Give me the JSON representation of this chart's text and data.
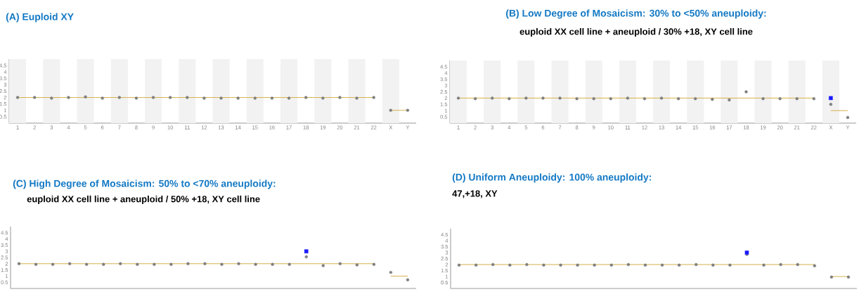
{
  "chart_data": [
    {
      "type": "scatter",
      "title": "(A) Euploid XY",
      "ylim": [
        0,
        5
      ],
      "yticks": [
        0.5,
        1,
        1.5,
        2,
        2.5,
        3,
        3.5,
        4,
        4.5
      ],
      "categories": [
        "1",
        "2",
        "3",
        "4",
        "5",
        "6",
        "7",
        "8",
        "9",
        "10",
        "11",
        "12",
        "13",
        "14",
        "15",
        "16",
        "17",
        "18",
        "19",
        "20",
        "21",
        "22",
        "X",
        "Y"
      ],
      "bands": [
        {
          "axis": "x",
          "from": "1",
          "to": "1",
          "color": "#f2f2f2"
        },
        {
          "axis": "x",
          "from": "3",
          "to": "3",
          "color": "#f2f2f2"
        },
        {
          "axis": "x",
          "from": "5",
          "to": "5",
          "color": "#f2f2f2"
        },
        {
          "axis": "x",
          "from": "7",
          "to": "7",
          "color": "#f2f2f2"
        },
        {
          "axis": "x",
          "from": "9",
          "to": "9",
          "color": "#f2f2f2"
        },
        {
          "axis": "x",
          "from": "11",
          "to": "11",
          "color": "#f2f2f2"
        },
        {
          "axis": "x",
          "from": "13",
          "to": "13",
          "color": "#f2f2f2"
        },
        {
          "axis": "x",
          "from": "15",
          "to": "15",
          "color": "#f2f2f2"
        },
        {
          "axis": "x",
          "from": "17",
          "to": "17",
          "color": "#f2f2f2"
        },
        {
          "axis": "x",
          "from": "19",
          "to": "19",
          "color": "#f2f2f2"
        },
        {
          "axis": "x",
          "from": "21",
          "to": "21",
          "color": "#f2f2f2"
        },
        {
          "axis": "x",
          "from": "X",
          "to": "X",
          "color": "#f2f2f2"
        }
      ],
      "series": [
        {
          "marker": "circle",
          "color": "#7f7f7f",
          "values": [
            2.0,
            2.0,
            1.95,
            2.0,
            2.05,
            1.95,
            2.0,
            1.95,
            2.0,
            2.0,
            2.0,
            1.95,
            1.95,
            1.95,
            1.95,
            1.95,
            1.95,
            2.0,
            1.95,
            2.0,
            1.95,
            2.0,
            1.0,
            1.0
          ]
        },
        {
          "type": "line",
          "color": "#d4b04a",
          "values": [
            2,
            2,
            2,
            2,
            2,
            2,
            2,
            2,
            2,
            2,
            2,
            2,
            2,
            2,
            2,
            2,
            2,
            2,
            2,
            2,
            2,
            2,
            null,
            null
          ]
        },
        {
          "type": "line",
          "color": "#d4b04a",
          "values": [
            null,
            null,
            null,
            null,
            null,
            null,
            null,
            null,
            null,
            null,
            null,
            null,
            null,
            null,
            null,
            null,
            null,
            null,
            null,
            null,
            null,
            null,
            1,
            1
          ]
        }
      ]
    },
    {
      "type": "scatter",
      "title": "(B) Low Degree of Mosaicism: 30% to <50% aneuploidy:",
      "subtitle": "euploid XX cell line + aneuploid / 30% +18, XY cell line",
      "ylim": [
        0,
        5
      ],
      "yticks": [
        0.5,
        1,
        1.5,
        2,
        2.5,
        3,
        3.5,
        4,
        4.5
      ],
      "categories": [
        "1",
        "2",
        "3",
        "4",
        "5",
        "6",
        "7",
        "8",
        "9",
        "10",
        "11",
        "12",
        "13",
        "14",
        "15",
        "16",
        "17",
        "18",
        "19",
        "20",
        "21",
        "22",
        "X",
        "Y"
      ],
      "bands": [
        {
          "axis": "x",
          "from": "1",
          "to": "1",
          "color": "#f2f2f2"
        },
        {
          "axis": "x",
          "from": "3",
          "to": "3",
          "color": "#f2f2f2"
        },
        {
          "axis": "x",
          "from": "5",
          "to": "5",
          "color": "#f2f2f2"
        },
        {
          "axis": "x",
          "from": "7",
          "to": "7",
          "color": "#f2f2f2"
        },
        {
          "axis": "x",
          "from": "9",
          "to": "9",
          "color": "#f2f2f2"
        },
        {
          "axis": "x",
          "from": "11",
          "to": "11",
          "color": "#f2f2f2"
        },
        {
          "axis": "x",
          "from": "13",
          "to": "13",
          "color": "#f2f2f2"
        },
        {
          "axis": "x",
          "from": "15",
          "to": "15",
          "color": "#f2f2f2"
        },
        {
          "axis": "x",
          "from": "17",
          "to": "17",
          "color": "#f2f2f2"
        },
        {
          "axis": "x",
          "from": "19",
          "to": "19",
          "color": "#f2f2f2"
        },
        {
          "axis": "x",
          "from": "21",
          "to": "21",
          "color": "#f2f2f2"
        },
        {
          "axis": "x",
          "from": "X",
          "to": "X",
          "color": "#f2f2f2"
        }
      ],
      "series": [
        {
          "marker": "circle",
          "color": "#7f7f7f",
          "values": [
            2.0,
            1.95,
            2.0,
            1.95,
            2.0,
            2.0,
            2.0,
            1.95,
            1.95,
            1.95,
            2.0,
            1.95,
            2.0,
            1.95,
            1.95,
            1.9,
            1.85,
            2.5,
            1.95,
            1.95,
            1.95,
            1.95,
            1.5,
            0.45
          ]
        },
        {
          "type": "line",
          "color": "#d4b04a",
          "values": [
            2,
            2,
            2,
            2,
            2,
            2,
            2,
            2,
            2,
            2,
            2,
            2,
            2,
            2,
            2,
            2,
            2,
            2,
            2,
            2,
            2,
            2,
            null,
            null
          ]
        },
        {
          "type": "line",
          "color": "#d4b04a",
          "values": [
            null,
            null,
            null,
            null,
            null,
            null,
            null,
            null,
            null,
            null,
            null,
            null,
            null,
            null,
            null,
            null,
            null,
            null,
            null,
            null,
            null,
            null,
            1,
            1
          ]
        },
        {
          "type": "scatter",
          "marker": "square",
          "color": "#1a1aff",
          "values": [
            null,
            null,
            null,
            null,
            null,
            null,
            null,
            null,
            null,
            null,
            null,
            null,
            null,
            null,
            null,
            null,
            null,
            null,
            null,
            null,
            null,
            null,
            2,
            null
          ]
        }
      ]
    },
    {
      "type": "scatter",
      "title": "(C) High Degree of Mosaicism: 50% to <70% aneuploidy:",
      "subtitle": "euploid XX cell line + aneuploid / 50% +18, XY cell line",
      "ylim": [
        0,
        5
      ],
      "yticks": [
        0.5,
        1,
        1.5,
        2,
        2.5,
        3,
        3.5,
        4,
        4.5
      ],
      "categories": [
        null,
        null,
        null,
        null,
        null,
        null,
        null,
        null,
        null,
        null,
        null,
        null,
        null,
        null,
        null,
        null,
        null,
        null,
        null,
        null,
        null,
        null,
        null,
        null
      ],
      "series": [
        {
          "marker": "circle",
          "color": "#7f7f7f",
          "values": [
            2.0,
            1.95,
            1.95,
            2.0,
            1.95,
            1.95,
            2.0,
            1.95,
            1.95,
            1.95,
            2.0,
            2.0,
            1.95,
            2.0,
            1.95,
            1.95,
            1.95,
            2.55,
            1.85,
            2.0,
            1.9,
            1.95,
            1.3,
            0.7
          ]
        },
        {
          "type": "line",
          "color": "#d4b04a",
          "values": [
            2,
            2,
            2,
            2,
            2,
            2,
            2,
            2,
            2,
            2,
            2,
            2,
            2,
            2,
            2,
            2,
            2,
            2,
            2,
            2,
            2,
            2,
            null,
            null
          ]
        },
        {
          "type": "line",
          "color": "#d4b04a",
          "values": [
            null,
            null,
            null,
            null,
            null,
            null,
            null,
            null,
            null,
            null,
            null,
            null,
            null,
            null,
            null,
            null,
            null,
            null,
            null,
            null,
            null,
            null,
            1,
            1
          ]
        },
        {
          "type": "scatter",
          "marker": "square",
          "color": "#1a1aff",
          "values": [
            null,
            null,
            null,
            null,
            null,
            null,
            null,
            null,
            null,
            null,
            null,
            null,
            null,
            null,
            null,
            null,
            null,
            3,
            null,
            null,
            null,
            null,
            null,
            null
          ]
        }
      ]
    },
    {
      "type": "scatter",
      "title": "(D) Uniform Aneuploidy: 100% aneuploidy:",
      "subtitle": "47,+18, XY",
      "ylim": [
        0,
        5
      ],
      "yticks": [
        0.5,
        1,
        1.5,
        2,
        2.5,
        3,
        3.5,
        4,
        4.5
      ],
      "categories": [
        null,
        null,
        null,
        null,
        null,
        null,
        null,
        null,
        null,
        null,
        null,
        null,
        null,
        null,
        null,
        null,
        null,
        null,
        null,
        null,
        null,
        null,
        null,
        null
      ],
      "series": [
        {
          "marker": "circle",
          "color": "#7f7f7f",
          "values": [
            1.95,
            1.95,
            2.0,
            1.95,
            2.0,
            1.95,
            1.95,
            1.95,
            1.95,
            1.95,
            2.0,
            1.95,
            1.95,
            1.95,
            2.0,
            1.95,
            1.95,
            2.85,
            1.95,
            2.0,
            2.0,
            1.9,
            0.95,
            0.95
          ]
        },
        {
          "type": "line",
          "color": "#d4b04a",
          "values": [
            2,
            2,
            2,
            2,
            2,
            2,
            2,
            2,
            2,
            2,
            2,
            2,
            2,
            2,
            2,
            2,
            2,
            2,
            2,
            2,
            2,
            2,
            null,
            null
          ]
        },
        {
          "type": "line",
          "color": "#d4b04a",
          "values": [
            null,
            null,
            null,
            null,
            null,
            null,
            null,
            null,
            null,
            null,
            null,
            null,
            null,
            null,
            null,
            null,
            null,
            null,
            null,
            null,
            null,
            null,
            1,
            1
          ]
        },
        {
          "type": "scatter",
          "marker": "square",
          "color": "#1a1aff",
          "values": [
            null,
            null,
            null,
            null,
            null,
            null,
            null,
            null,
            null,
            null,
            null,
            null,
            null,
            null,
            null,
            null,
            null,
            3,
            null,
            null,
            null,
            null,
            null,
            null
          ]
        }
      ]
    }
  ]
}
